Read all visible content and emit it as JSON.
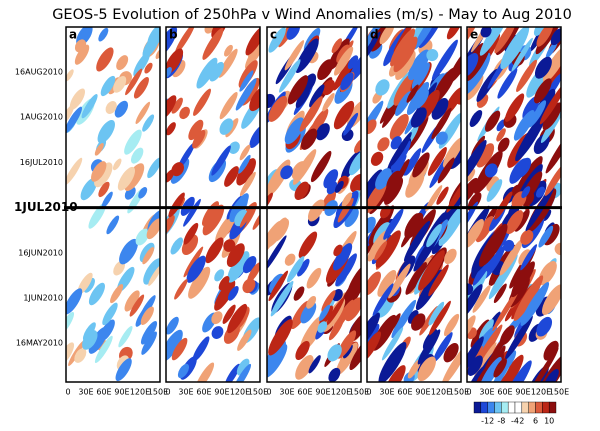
{
  "chart_data": {
    "type": "hovmoller",
    "title": "GEOS-5 Evolution of 250hPa v Wind Anomalies (m/s) - May to Aug 2010",
    "panels": [
      "a",
      "b",
      "c",
      "d",
      "e"
    ],
    "yticks": [
      "16AUG2010",
      "1AUG2010",
      "16JUL2010",
      "1JUL2010",
      "16JUN2010",
      "1JUN2010",
      "16MAY2010"
    ],
    "highlight": "1JUL2010",
    "xticks": [
      "0",
      "30E",
      "60E",
      "90E",
      "120E",
      "150E"
    ],
    "colorbar": {
      "ticks": [
        "-12",
        "-8",
        "-4",
        "2",
        "6",
        "10"
      ],
      "colors": [
        "#0b1a96",
        "#1e48d8",
        "#3c86ee",
        "#6cc4f2",
        "#a6ecf2",
        "#ffffff",
        "#ffffff",
        "#f6d2ae",
        "#f0a276",
        "#dc5a3a",
        "#bc2616",
        "#8c0e0e"
      ]
    }
  }
}
